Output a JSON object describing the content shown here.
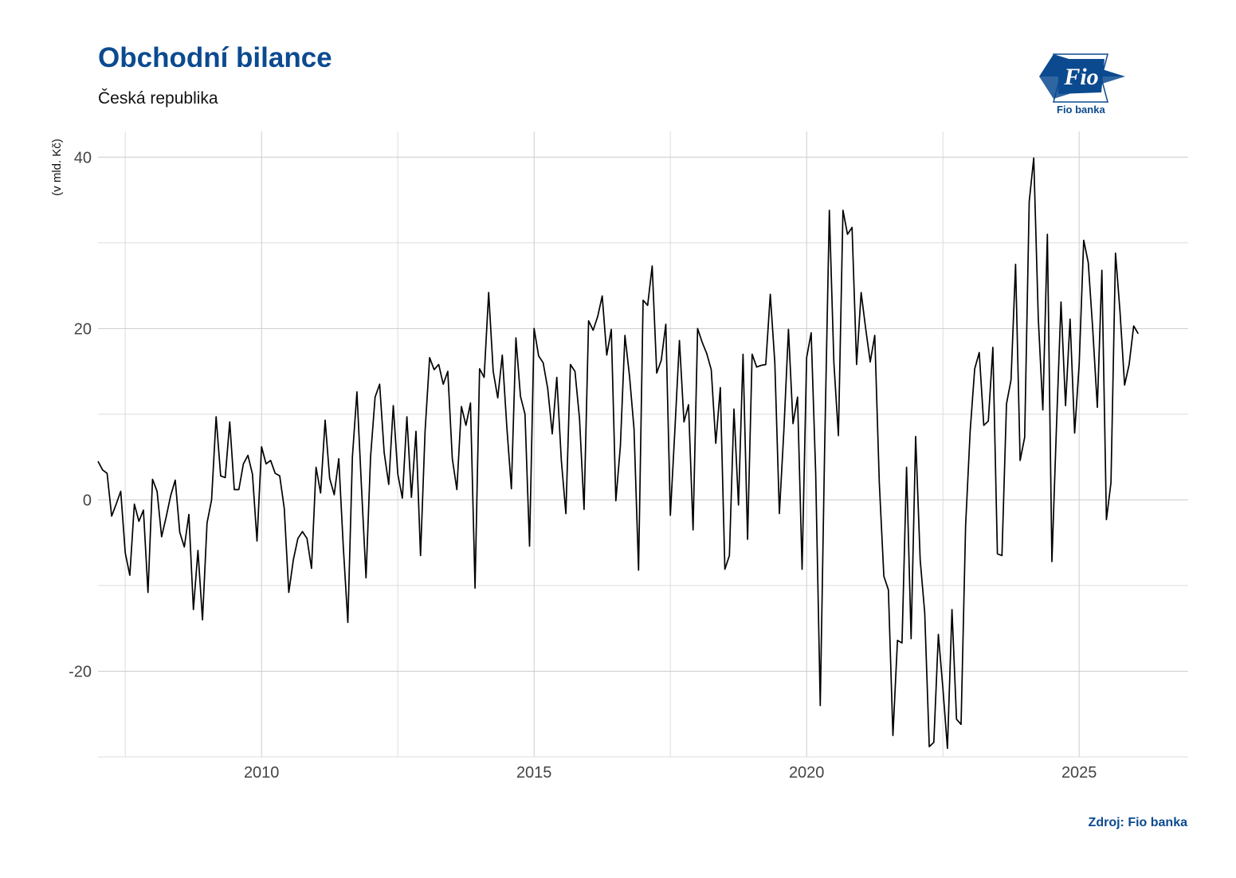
{
  "header": {
    "title": "Obchodní bilance",
    "subtitle": "Česká republika"
  },
  "logo": {
    "name": "fio-logo",
    "mark_text": "Fio",
    "caption": "Fio banka",
    "color": "#0b4a8f"
  },
  "footer": {
    "source": "Zdroj: Fio banka"
  },
  "chart_data": {
    "type": "line",
    "title": "Obchodní bilance",
    "subtitle": "Česká republika",
    "xlabel": "",
    "ylabel": "(v mld. Kč)",
    "xlim": [
      2007.0,
      2027.0
    ],
    "ylim": [
      -30,
      43
    ],
    "x_ticks": [
      2010,
      2015,
      2020,
      2025
    ],
    "x_tick_labels": [
      "2010",
      "2015",
      "2020",
      "2025"
    ],
    "y_ticks": [
      -20,
      0,
      20,
      40
    ],
    "y_tick_labels": [
      "-20",
      "0",
      "20",
      "40"
    ],
    "grid": true,
    "legend": "none",
    "line_color": "#000000",
    "x_start": 2007.0,
    "x_step": 0.0833333,
    "series": [
      {
        "values": [
          4.5,
          3.5,
          3.1,
          -1.9,
          -0.5,
          1.0,
          -6.2,
          -8.8,
          -0.5,
          -2.5,
          -1.2,
          -10.8,
          2.4,
          1.0,
          -4.3,
          -2.0,
          0.5,
          2.3,
          -3.8,
          -5.5,
          -1.7,
          -12.8,
          -5.9,
          -14.0,
          -2.7,
          0.0,
          9.7,
          2.8,
          2.6,
          9.1,
          1.2,
          1.2,
          4.2,
          5.2,
          3.0,
          -4.8,
          6.2,
          4.2,
          4.6,
          3.1,
          2.8,
          -1.0,
          -10.8,
          -7.0,
          -4.5,
          -3.7,
          -4.5,
          -8.0,
          3.8,
          0.8,
          9.3,
          2.5,
          0.6,
          4.8,
          -5.5,
          -14.3,
          5.0,
          12.6,
          1.5,
          -9.1,
          5.0,
          12.0,
          13.5,
          5.5,
          1.8,
          11.0,
          3.0,
          0.2,
          9.7,
          0.3,
          8.0,
          -6.5,
          8.0,
          16.6,
          15.2,
          15.8,
          13.5,
          15.0,
          4.8,
          1.2,
          10.9,
          8.7,
          11.3,
          -10.3,
          15.3,
          14.3,
          24.2,
          15.0,
          11.9,
          16.9,
          8.5,
          1.3,
          18.9,
          12.1,
          10.0,
          -5.4,
          20.0,
          16.8,
          16.0,
          13.0,
          7.7,
          14.3,
          4.6,
          -1.6,
          15.8,
          15.0,
          9.5,
          -1.1,
          20.9,
          19.8,
          21.4,
          23.8,
          16.9,
          19.9,
          -0.1,
          6.3,
          19.2,
          14.5,
          8.3,
          -8.2,
          23.3,
          22.7,
          27.3,
          14.8,
          16.3,
          20.5,
          -1.8,
          8.2,
          18.6,
          9.1,
          11.1,
          -3.5,
          20.0,
          18.4,
          17.1,
          15.2,
          6.6,
          13.1,
          -8.1,
          -6.5,
          10.6,
          -0.6,
          17.0,
          -4.6,
          17.0,
          15.5,
          15.7,
          15.8,
          24.0,
          16.0,
          -1.6,
          8.2,
          19.9,
          8.9,
          12.0,
          -8.1,
          16.6,
          19.5,
          3.0,
          -24.0,
          7.0,
          33.8,
          16.0,
          7.5,
          33.8,
          31.0,
          31.8,
          15.8,
          24.2,
          20.0,
          16.1,
          19.2,
          2.0,
          -8.9,
          -10.5,
          -27.5,
          -16.4,
          -16.7,
          3.8,
          -16.2,
          7.4,
          -7.0,
          -13.2,
          -28.8,
          -28.3,
          -15.7,
          -22.0,
          -29.0,
          -12.8,
          -25.6,
          -26.2,
          -3.0,
          8.0,
          15.3,
          17.2,
          8.7,
          9.2,
          17.8,
          -6.3,
          -6.5,
          11.2,
          14.0,
          27.5,
          4.6,
          7.3,
          34.8,
          39.9,
          21.2,
          10.5,
          31.0,
          -7.2,
          8.5,
          23.1,
          11.0,
          21.1,
          7.8,
          15.8,
          30.3,
          27.7,
          19.8,
          10.8,
          26.8,
          -2.3,
          2.0,
          28.8,
          21.9,
          13.4,
          15.8,
          20.3,
          19.4
        ]
      }
    ]
  }
}
